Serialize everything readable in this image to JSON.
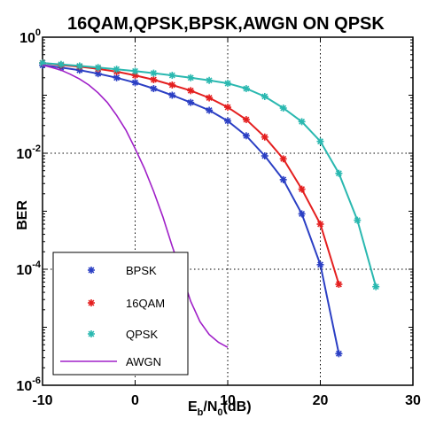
{
  "chart_data": {
    "type": "line",
    "title": "16QAM,QPSK,BPSK,AWGN ON QPSK",
    "xlabel": {
      "base": "E",
      "sub1": "b",
      "mid": "/N",
      "sub2": "0",
      "tail": "(dB)"
    },
    "ylabel": "BER",
    "xlim": [
      -10,
      30
    ],
    "ylim": [
      1e-06,
      1
    ],
    "yscale": "log",
    "grid": true,
    "legend_position": "bottom-left",
    "x_ticks": [
      "-10",
      "0",
      "10",
      "20",
      "30"
    ],
    "y_ticks": [
      {
        "base": "10",
        "exp": "0",
        "value": 1
      },
      {
        "base": "10",
        "exp": "-2",
        "value": 0.01
      },
      {
        "base": "10",
        "exp": "-4",
        "value": 0.0001
      },
      {
        "base": "10",
        "exp": "-6",
        "value": 1e-06
      }
    ],
    "series": [
      {
        "name": "BPSK",
        "color": "#2b3fc4",
        "marker": "asterisk",
        "x": [
          -10,
          -8,
          -6,
          -4,
          -2,
          0,
          2,
          4,
          6,
          8,
          10,
          12,
          14,
          16,
          18,
          20,
          22
        ],
        "y": [
          0.33,
          0.3,
          0.27,
          0.235,
          0.2,
          0.165,
          0.13,
          0.1,
          0.075,
          0.055,
          0.036,
          0.02,
          0.009,
          0.0035,
          0.0009,
          0.00012,
          3.5e-06
        ]
      },
      {
        "name": "16QAM",
        "color": "#e41f1f",
        "marker": "asterisk",
        "x": [
          -10,
          -8,
          -6,
          -4,
          -2,
          0,
          2,
          4,
          6,
          8,
          10,
          12,
          14,
          16,
          18,
          20,
          22
        ],
        "y": [
          0.36,
          0.33,
          0.31,
          0.285,
          0.255,
          0.22,
          0.185,
          0.15,
          0.12,
          0.09,
          0.062,
          0.038,
          0.019,
          0.008,
          0.0024,
          0.0006,
          5.5e-05
        ]
      },
      {
        "name": "QPSK",
        "color": "#2ab8b0",
        "marker": "asterisk",
        "x": [
          -10,
          -8,
          -6,
          -4,
          -2,
          0,
          2,
          4,
          6,
          8,
          10,
          12,
          14,
          16,
          18,
          20,
          22,
          24,
          26
        ],
        "y": [
          0.36,
          0.34,
          0.32,
          0.3,
          0.28,
          0.26,
          0.24,
          0.22,
          0.2,
          0.18,
          0.16,
          0.13,
          0.095,
          0.06,
          0.035,
          0.016,
          0.0045,
          0.0007,
          5e-05
        ]
      },
      {
        "name": "AWGN",
        "color": "#a020c8",
        "marker": "none",
        "x": [
          -10,
          -9,
          -8,
          -7,
          -6,
          -5,
          -4,
          -3,
          -2,
          -1,
          0,
          1,
          2,
          3,
          4,
          5,
          6,
          7,
          8,
          9,
          10
        ],
        "y": [
          0.33,
          0.3,
          0.27,
          0.23,
          0.19,
          0.15,
          0.11,
          0.075,
          0.045,
          0.025,
          0.012,
          0.0055,
          0.0022,
          0.0008,
          0.00025,
          8.5e-05,
          2.8e-05,
          1.25e-05,
          7.5e-06,
          5.5e-06,
          4.5e-06
        ]
      }
    ]
  }
}
